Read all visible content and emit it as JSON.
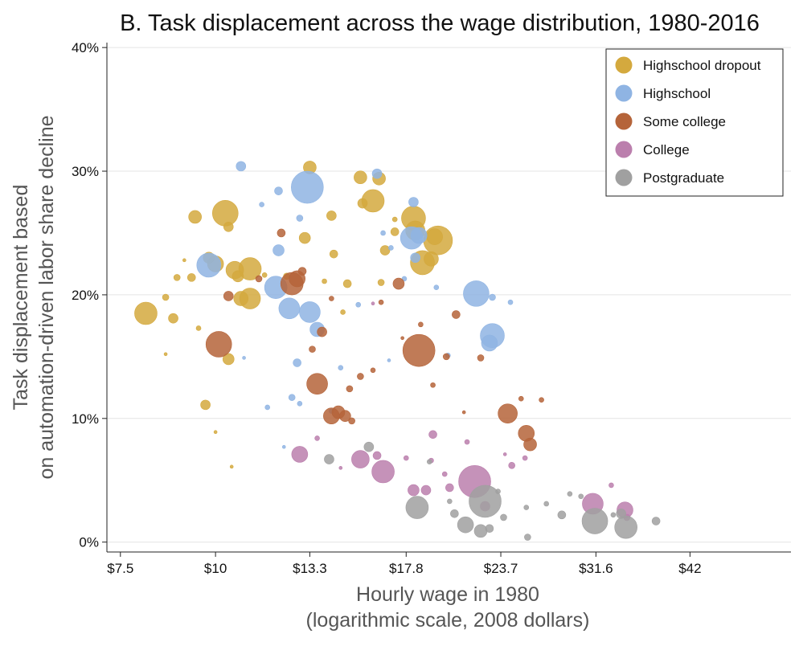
{
  "chart_data": {
    "type": "scatter",
    "title": "B. Task displacement across the wage distribution, 1980-2016",
    "xlabel": [
      "Hourly wage in 1980",
      "(logarithmic scale, 2008 dollars)"
    ],
    "ylabel": [
      "Task displacement based",
      "on automation-driven labor share decline"
    ],
    "x_scale": "log",
    "xlim": [
      7.2,
      57
    ],
    "ylim": [
      -0.8,
      40.4
    ],
    "x_ticks": [
      7.5,
      10,
      13.3,
      17.8,
      23.7,
      31.6,
      42
    ],
    "x_tick_labels": [
      "$7.5",
      "$10",
      "$13.3",
      "$17.8",
      "$23.7",
      "$31.6",
      "$42"
    ],
    "y_ticks": [
      0,
      10,
      20,
      30,
      40
    ],
    "y_tick_labels": [
      "0%",
      "10%",
      "20%",
      "30%",
      "40%"
    ],
    "grid": "horizontal",
    "legend_position": "top-right",
    "series": [
      {
        "name": "Highschool dropout",
        "color": "#d4a93e",
        "points": [
          [
            8.1,
            18.5,
            14
          ],
          [
            8.8,
            18.1,
            6
          ],
          [
            8.6,
            19.8,
            4
          ],
          [
            8.9,
            21.4,
            4
          ],
          [
            9.3,
            21.4,
            5
          ],
          [
            9.4,
            26.3,
            8
          ],
          [
            9.8,
            23.0,
            7
          ],
          [
            10.0,
            22.5,
            10
          ],
          [
            10.3,
            26.6,
            16
          ],
          [
            10.4,
            25.5,
            6
          ],
          [
            10.6,
            22.0,
            11
          ],
          [
            10.7,
            21.5,
            7
          ],
          [
            10.8,
            19.7,
            9
          ],
          [
            11.1,
            22.1,
            14
          ],
          [
            11.1,
            19.7,
            13
          ],
          [
            9.7,
            11.1,
            6
          ],
          [
            10.4,
            14.8,
            7
          ],
          [
            10.5,
            6.1,
            2
          ],
          [
            9.5,
            17.3,
            3
          ],
          [
            11.6,
            21.6,
            3
          ],
          [
            12.4,
            21.5,
            4
          ],
          [
            13.1,
            24.6,
            7
          ],
          [
            13.3,
            30.3,
            8
          ],
          [
            14.2,
            26.4,
            6
          ],
          [
            14.3,
            23.3,
            5
          ],
          [
            14.9,
            20.9,
            5
          ],
          [
            15.6,
            27.4,
            6
          ],
          [
            15.5,
            29.5,
            8
          ],
          [
            16.1,
            27.6,
            14
          ],
          [
            16.4,
            29.4,
            8
          ],
          [
            16.5,
            21.0,
            4
          ],
          [
            16.7,
            23.6,
            6
          ],
          [
            17.2,
            25.1,
            5
          ],
          [
            18.2,
            26.2,
            15
          ],
          [
            18.3,
            25.2,
            12
          ],
          [
            18.7,
            22.6,
            15
          ],
          [
            19.2,
            22.9,
            9
          ],
          [
            19.6,
            24.4,
            18
          ],
          [
            19.4,
            24.7,
            10
          ],
          [
            17.2,
            26.1,
            3
          ],
          [
            9.1,
            22.8,
            2
          ],
          [
            8.6,
            15.2,
            2
          ],
          [
            10.0,
            8.9,
            2
          ],
          [
            14.7,
            18.6,
            3
          ],
          [
            13.9,
            21.1,
            3
          ]
        ]
      },
      {
        "name": "Highschool",
        "color": "#8fb4e3",
        "points": [
          [
            9.8,
            22.4,
            15
          ],
          [
            10.8,
            30.4,
            6
          ],
          [
            11.5,
            27.3,
            3
          ],
          [
            12.1,
            28.4,
            5
          ],
          [
            12.9,
            26.2,
            4
          ],
          [
            13.2,
            28.7,
            20
          ],
          [
            12.1,
            23.6,
            7
          ],
          [
            12.0,
            20.6,
            14
          ],
          [
            12.5,
            18.9,
            13
          ],
          [
            13.3,
            18.6,
            13
          ],
          [
            13.6,
            17.2,
            9
          ],
          [
            12.8,
            14.5,
            5
          ],
          [
            12.6,
            11.7,
            4
          ],
          [
            12.9,
            11.2,
            3
          ],
          [
            14.6,
            14.1,
            3
          ],
          [
            15.4,
            19.2,
            3
          ],
          [
            16.3,
            29.8,
            6
          ],
          [
            17.0,
            23.8,
            3
          ],
          [
            16.6,
            25.0,
            3
          ],
          [
            18.2,
            27.5,
            6
          ],
          [
            18.1,
            24.6,
            14
          ],
          [
            18.5,
            24.8,
            10
          ],
          [
            18.3,
            23.0,
            6
          ],
          [
            19.5,
            20.6,
            3
          ],
          [
            22.0,
            20.1,
            16
          ],
          [
            23.1,
            16.7,
            15
          ],
          [
            22.9,
            16.1,
            10
          ],
          [
            24.4,
            19.4,
            3
          ],
          [
            23.1,
            19.8,
            4
          ],
          [
            20.2,
            15.1,
            3
          ],
          [
            11.7,
            10.9,
            3
          ],
          [
            12.3,
            7.7,
            2
          ],
          [
            10.9,
            14.9,
            2
          ],
          [
            14.2,
            10.6,
            3
          ],
          [
            16.9,
            14.7,
            2
          ],
          [
            17.7,
            21.3,
            3
          ]
        ]
      },
      {
        "name": "Some college",
        "color": "#b5643a",
        "points": [
          [
            10.1,
            16.0,
            16
          ],
          [
            10.4,
            19.9,
            6
          ],
          [
            11.4,
            21.3,
            4
          ],
          [
            12.2,
            25.0,
            5
          ],
          [
            12.6,
            20.9,
            14
          ],
          [
            12.8,
            21.3,
            10
          ],
          [
            13.0,
            21.9,
            5
          ],
          [
            13.4,
            15.6,
            4
          ],
          [
            13.8,
            17.0,
            6
          ],
          [
            13.6,
            12.8,
            13
          ],
          [
            14.2,
            10.2,
            10
          ],
          [
            14.5,
            10.5,
            8
          ],
          [
            14.8,
            10.2,
            7
          ],
          [
            15.1,
            9.8,
            4
          ],
          [
            15.0,
            12.4,
            4
          ],
          [
            15.5,
            13.4,
            4
          ],
          [
            16.1,
            13.9,
            3
          ],
          [
            16.5,
            19.4,
            3
          ],
          [
            17.4,
            20.9,
            7
          ],
          [
            18.5,
            15.5,
            20
          ],
          [
            20.1,
            15.0,
            4
          ],
          [
            20.7,
            18.4,
            5
          ],
          [
            18.6,
            17.6,
            3
          ],
          [
            24.2,
            10.4,
            12
          ],
          [
            25.6,
            8.8,
            10
          ],
          [
            25.9,
            7.9,
            8
          ],
          [
            26.8,
            11.5,
            3
          ],
          [
            25.2,
            11.6,
            3
          ],
          [
            22.3,
            14.9,
            4
          ],
          [
            14.2,
            19.7,
            3
          ],
          [
            19.3,
            12.7,
            3
          ],
          [
            21.2,
            10.5,
            2
          ],
          [
            17.6,
            16.5,
            2
          ]
        ]
      },
      {
        "name": "College",
        "color": "#bb7fad",
        "points": [
          [
            12.9,
            7.1,
            10
          ],
          [
            15.5,
            6.7,
            11
          ],
          [
            16.6,
            5.7,
            14
          ],
          [
            16.3,
            7.0,
            5
          ],
          [
            18.2,
            4.2,
            7
          ],
          [
            18.9,
            4.2,
            6
          ],
          [
            20.3,
            4.4,
            5
          ],
          [
            21.9,
            4.9,
            20
          ],
          [
            22.6,
            2.9,
            6
          ],
          [
            20.0,
            5.5,
            3
          ],
          [
            31.3,
            3.1,
            13
          ],
          [
            34.5,
            2.6,
            10
          ],
          [
            34.7,
            2.0,
            4
          ],
          [
            19.3,
            8.7,
            5
          ],
          [
            24.5,
            6.2,
            4
          ],
          [
            21.4,
            8.1,
            3
          ],
          [
            17.8,
            6.8,
            3
          ],
          [
            19.2,
            6.6,
            3
          ],
          [
            14.6,
            6.0,
            2
          ],
          [
            13.6,
            8.4,
            3
          ],
          [
            24.0,
            7.1,
            2
          ],
          [
            25.5,
            6.8,
            3
          ],
          [
            33.1,
            4.6,
            3
          ],
          [
            16.1,
            19.3,
            2
          ]
        ]
      },
      {
        "name": "Postgraduate",
        "color": "#a0a0a0",
        "points": [
          [
            14.1,
            6.7,
            6
          ],
          [
            15.9,
            7.7,
            6
          ],
          [
            18.4,
            2.8,
            14
          ],
          [
            20.6,
            2.3,
            5
          ],
          [
            21.3,
            1.4,
            10
          ],
          [
            22.3,
            0.9,
            8
          ],
          [
            22.9,
            1.1,
            5
          ],
          [
            22.6,
            3.3,
            20
          ],
          [
            23.9,
            2.0,
            4
          ],
          [
            25.7,
            0.4,
            4
          ],
          [
            28.5,
            2.2,
            5
          ],
          [
            31.5,
            1.7,
            16
          ],
          [
            34.6,
            1.2,
            14
          ],
          [
            34.1,
            2.3,
            6
          ],
          [
            37.9,
            1.7,
            5
          ],
          [
            29.2,
            3.9,
            3
          ],
          [
            27.2,
            3.1,
            3
          ],
          [
            30.2,
            3.7,
            3
          ],
          [
            33.3,
            2.2,
            3
          ],
          [
            25.6,
            2.8,
            3
          ],
          [
            19.1,
            6.5,
            3
          ],
          [
            20.3,
            3.3,
            3
          ],
          [
            23.5,
            4.1,
            3
          ]
        ]
      }
    ]
  }
}
